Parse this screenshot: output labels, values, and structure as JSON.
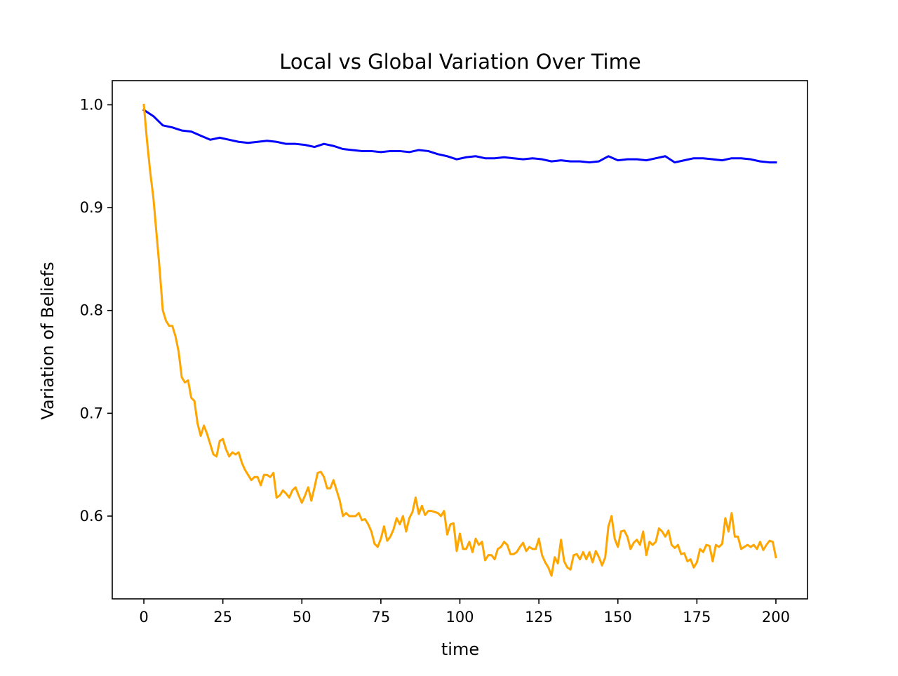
{
  "colors": {
    "background": "#ffffff",
    "axes": "#000000"
  },
  "chart_data": {
    "type": "line",
    "title": "Local vs Global Variation Over Time",
    "xlabel": "time",
    "ylabel": "Variation of Beliefs",
    "xlim": [
      -10,
      210
    ],
    "ylim": [
      0.5195,
      1.0235
    ],
    "x_ticks": [
      0,
      25,
      50,
      75,
      100,
      125,
      150,
      175,
      200
    ],
    "x_tick_labels": [
      "0",
      "25",
      "50",
      "75",
      "100",
      "125",
      "150",
      "175",
      "200"
    ],
    "y_ticks": [
      0.6,
      0.7,
      0.8,
      0.9,
      1.0
    ],
    "y_tick_labels": [
      "0.6",
      "0.7",
      "0.8",
      "0.9",
      "1.0"
    ],
    "grid": false,
    "legend": false,
    "series": [
      {
        "color": "#0000ff",
        "x": [
          0,
          3,
          6,
          9,
          12,
          15,
          18,
          21,
          24,
          27,
          30,
          33,
          36,
          39,
          42,
          45,
          48,
          51,
          54,
          57,
          60,
          63,
          66,
          69,
          72,
          75,
          78,
          81,
          84,
          87,
          90,
          93,
          96,
          99,
          102,
          105,
          108,
          111,
          114,
          117,
          120,
          123,
          126,
          129,
          132,
          135,
          138,
          141,
          144,
          147,
          150,
          153,
          156,
          159,
          162,
          165,
          168,
          171,
          174,
          177,
          180,
          183,
          186,
          189,
          192,
          195,
          198,
          200
        ],
        "y": [
          0.995,
          0.989,
          0.98,
          0.978,
          0.975,
          0.974,
          0.97,
          0.966,
          0.968,
          0.966,
          0.964,
          0.963,
          0.964,
          0.965,
          0.964,
          0.962,
          0.962,
          0.961,
          0.959,
          0.962,
          0.96,
          0.957,
          0.956,
          0.955,
          0.955,
          0.954,
          0.955,
          0.955,
          0.954,
          0.956,
          0.955,
          0.952,
          0.95,
          0.947,
          0.949,
          0.95,
          0.948,
          0.948,
          0.949,
          0.948,
          0.947,
          0.948,
          0.947,
          0.945,
          0.946,
          0.945,
          0.945,
          0.944,
          0.945,
          0.95,
          0.946,
          0.947,
          0.947,
          0.946,
          0.948,
          0.95,
          0.944,
          0.946,
          0.948,
          0.948,
          0.947,
          0.946,
          0.948,
          0.948,
          0.947,
          0.945,
          0.944,
          0.944
        ]
      },
      {
        "color": "#ffa500",
        "x": [
          0,
          1,
          2,
          3,
          4,
          5,
          6,
          7,
          8,
          9,
          10,
          11,
          12,
          13,
          14,
          15,
          16,
          17,
          18,
          19,
          20,
          21,
          22,
          23,
          24,
          25,
          26,
          27,
          28,
          29,
          30,
          31,
          32,
          33,
          34,
          35,
          36,
          37,
          38,
          39,
          40,
          41,
          42,
          43,
          44,
          45,
          46,
          47,
          48,
          49,
          50,
          51,
          52,
          53,
          54,
          55,
          56,
          57,
          58,
          59,
          60,
          61,
          62,
          63,
          64,
          65,
          66,
          67,
          68,
          69,
          70,
          71,
          72,
          73,
          74,
          75,
          76,
          77,
          78,
          79,
          80,
          81,
          82,
          83,
          84,
          85,
          86,
          87,
          88,
          89,
          90,
          91,
          92,
          93,
          94,
          95,
          96,
          97,
          98,
          99,
          100,
          101,
          102,
          103,
          104,
          105,
          106,
          107,
          108,
          109,
          110,
          111,
          112,
          113,
          114,
          115,
          116,
          117,
          118,
          119,
          120,
          121,
          122,
          123,
          124,
          125,
          126,
          127,
          128,
          129,
          130,
          131,
          132,
          133,
          134,
          135,
          136,
          137,
          138,
          139,
          140,
          141,
          142,
          143,
          144,
          145,
          146,
          147,
          148,
          149,
          150,
          151,
          152,
          153,
          154,
          155,
          156,
          157,
          158,
          159,
          160,
          161,
          162,
          163,
          164,
          165,
          166,
          167,
          168,
          169,
          170,
          171,
          172,
          173,
          174,
          175,
          176,
          177,
          178,
          179,
          180,
          181,
          182,
          183,
          184,
          185,
          186,
          187,
          188,
          189,
          190,
          191,
          192,
          193,
          194,
          195,
          196,
          197,
          198,
          199,
          200
        ],
        "y": [
          1.0,
          0.965,
          0.935,
          0.91,
          0.875,
          0.84,
          0.8,
          0.79,
          0.785,
          0.785,
          0.775,
          0.76,
          0.735,
          0.73,
          0.732,
          0.715,
          0.712,
          0.69,
          0.678,
          0.688,
          0.68,
          0.67,
          0.66,
          0.658,
          0.673,
          0.675,
          0.665,
          0.658,
          0.662,
          0.66,
          0.662,
          0.652,
          0.645,
          0.64,
          0.635,
          0.638,
          0.638,
          0.63,
          0.64,
          0.64,
          0.638,
          0.642,
          0.618,
          0.62,
          0.625,
          0.622,
          0.618,
          0.625,
          0.628,
          0.62,
          0.613,
          0.62,
          0.628,
          0.615,
          0.628,
          0.642,
          0.643,
          0.638,
          0.627,
          0.627,
          0.635,
          0.625,
          0.615,
          0.6,
          0.603,
          0.6,
          0.6,
          0.6,
          0.603,
          0.596,
          0.597,
          0.592,
          0.585,
          0.573,
          0.57,
          0.578,
          0.59,
          0.576,
          0.58,
          0.587,
          0.598,
          0.592,
          0.6,
          0.585,
          0.598,
          0.604,
          0.618,
          0.602,
          0.61,
          0.601,
          0.605,
          0.605,
          0.604,
          0.603,
          0.6,
          0.605,
          0.582,
          0.592,
          0.593,
          0.566,
          0.583,
          0.568,
          0.568,
          0.575,
          0.565,
          0.578,
          0.572,
          0.575,
          0.557,
          0.562,
          0.562,
          0.558,
          0.568,
          0.57,
          0.575,
          0.572,
          0.563,
          0.563,
          0.565,
          0.57,
          0.574,
          0.566,
          0.57,
          0.568,
          0.568,
          0.578,
          0.562,
          0.555,
          0.55,
          0.542,
          0.56,
          0.554,
          0.577,
          0.556,
          0.55,
          0.548,
          0.562,
          0.563,
          0.558,
          0.565,
          0.558,
          0.565,
          0.555,
          0.566,
          0.56,
          0.552,
          0.56,
          0.59,
          0.6,
          0.578,
          0.57,
          0.585,
          0.586,
          0.58,
          0.568,
          0.574,
          0.577,
          0.572,
          0.585,
          0.562,
          0.575,
          0.572,
          0.575,
          0.588,
          0.585,
          0.58,
          0.586,
          0.572,
          0.569,
          0.572,
          0.563,
          0.564,
          0.556,
          0.558,
          0.55,
          0.555,
          0.568,
          0.565,
          0.572,
          0.571,
          0.556,
          0.572,
          0.57,
          0.573,
          0.598,
          0.585,
          0.603,
          0.58,
          0.58,
          0.568,
          0.57,
          0.572,
          0.57,
          0.572,
          0.568,
          0.575,
          0.567,
          0.572,
          0.576,
          0.575,
          0.56
        ]
      }
    ]
  }
}
